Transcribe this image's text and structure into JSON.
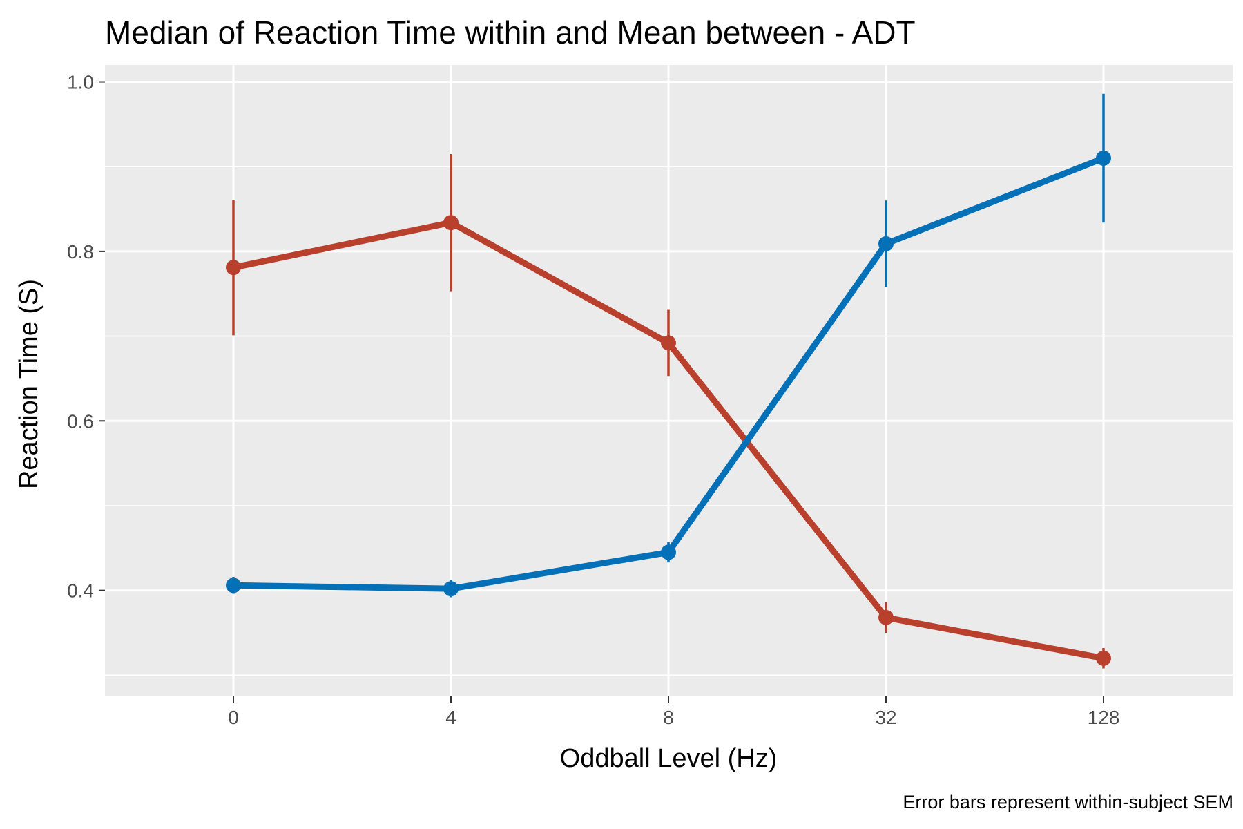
{
  "chart_data": {
    "type": "line",
    "title": "Median of Reaction Time within and Mean between - ADT",
    "xlabel": "Oddball Level (Hz)",
    "ylabel": "Reaction Time (S)",
    "caption": "Error bars represent within-subject SEM",
    "categories": [
      "0",
      "4",
      "8",
      "32",
      "128"
    ],
    "ylim": [
      0.275,
      1.02
    ],
    "yticks": [
      0.4,
      0.6,
      0.8,
      1.0
    ],
    "ytick_labels": [
      "0.4",
      "0.6",
      "0.8",
      "1.0"
    ],
    "y_minor_gridlines": [
      0.3,
      0.5,
      0.7,
      0.9
    ],
    "grid": true,
    "legend": "none",
    "series": [
      {
        "color": "#B8402C",
        "values": [
          0.781,
          0.834,
          0.692,
          0.368,
          0.32
        ],
        "error": [
          0.08,
          0.081,
          0.039,
          0.018,
          0.012
        ]
      },
      {
        "color": "#0470B8",
        "values": [
          0.406,
          0.402,
          0.445,
          0.809,
          0.91
        ],
        "error": [
          0.01,
          0.01,
          0.012,
          0.051,
          0.076
        ]
      }
    ]
  }
}
